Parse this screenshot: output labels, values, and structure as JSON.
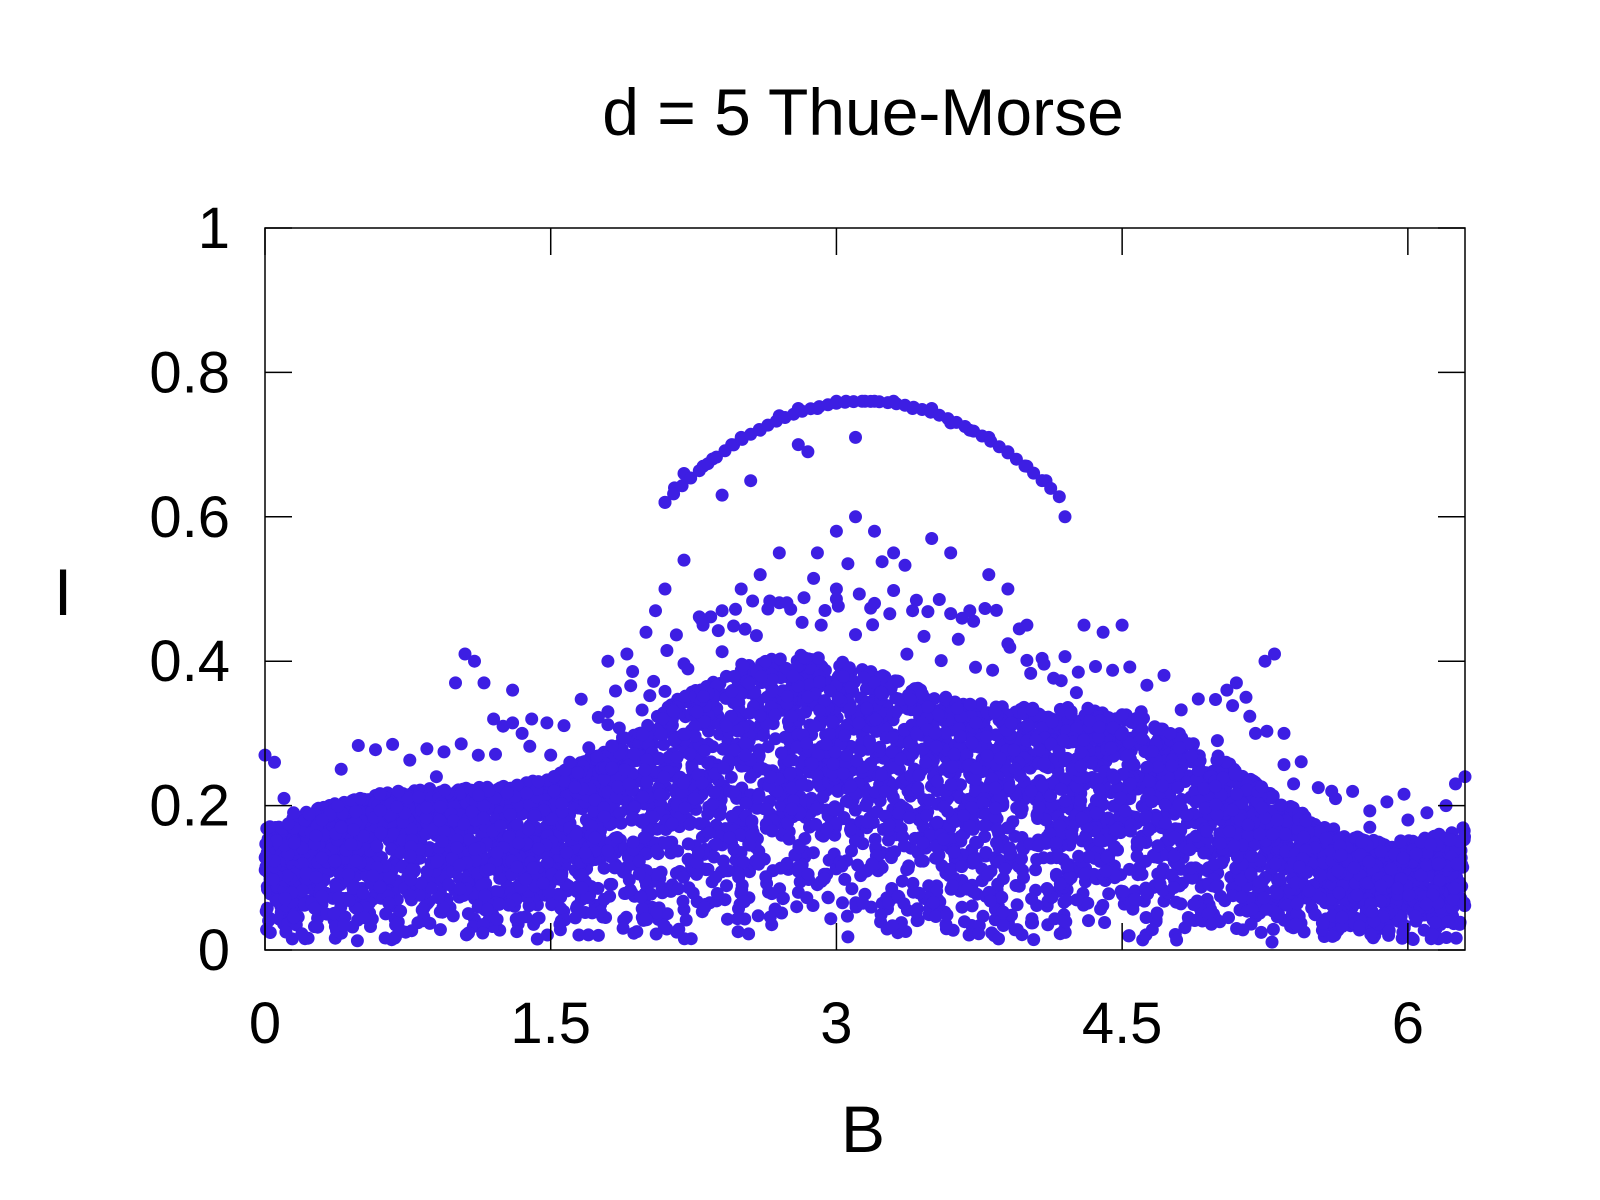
{
  "chart_data": {
    "type": "scatter",
    "title": "d = 5 Thue-Morse",
    "xlabel": "B",
    "ylabel": "I",
    "xlim": [
      0,
      6.3
    ],
    "ylim": [
      0,
      1
    ],
    "xticks": [
      0,
      1.5,
      3,
      4.5,
      6
    ],
    "xtick_labels": [
      "0",
      "1.5",
      "3",
      "4.5",
      "6"
    ],
    "yticks": [
      0,
      0.2,
      0.4,
      0.6,
      0.8,
      1
    ],
    "ytick_labels": [
      "0",
      "0.2",
      "0.4",
      "0.6",
      "0.8",
      "1"
    ],
    "grid": false,
    "legend": "none",
    "marker_color": "#3d1ee3",
    "series": [
      {
        "description_points_sampled": true,
        "points": [
          [
            0.0,
            0.27
          ],
          [
            0.05,
            0.26
          ],
          [
            0.1,
            0.21
          ],
          [
            0.15,
            0.19
          ],
          [
            0.3,
            0.18
          ],
          [
            0.4,
            0.17
          ],
          [
            0.5,
            0.21
          ],
          [
            0.7,
            0.22
          ],
          [
            0.9,
            0.24
          ],
          [
            1.0,
            0.37
          ],
          [
            1.05,
            0.41
          ],
          [
            1.1,
            0.4
          ],
          [
            1.15,
            0.37
          ],
          [
            1.2,
            0.32
          ],
          [
            1.25,
            0.31
          ],
          [
            1.3,
            0.36
          ],
          [
            1.35,
            0.3
          ],
          [
            1.4,
            0.32
          ],
          [
            1.5,
            0.27
          ],
          [
            1.6,
            0.26
          ],
          [
            1.7,
            0.28
          ],
          [
            1.8,
            0.33
          ],
          [
            1.8,
            0.4
          ],
          [
            1.9,
            0.41
          ],
          [
            2.0,
            0.44
          ],
          [
            2.05,
            0.47
          ],
          [
            2.1,
            0.5
          ],
          [
            2.1,
            0.62
          ],
          [
            2.15,
            0.64
          ],
          [
            2.2,
            0.54
          ],
          [
            2.2,
            0.66
          ],
          [
            2.3,
            0.67
          ],
          [
            2.35,
            0.68
          ],
          [
            2.4,
            0.63
          ],
          [
            2.45,
            0.7
          ],
          [
            2.5,
            0.71
          ],
          [
            2.55,
            0.65
          ],
          [
            2.6,
            0.72
          ],
          [
            2.7,
            0.74
          ],
          [
            2.8,
            0.75
          ],
          [
            2.8,
            0.7
          ],
          [
            2.85,
            0.69
          ],
          [
            2.9,
            0.75
          ],
          [
            3.0,
            0.76
          ],
          [
            3.05,
            0.76
          ],
          [
            3.1,
            0.71
          ],
          [
            3.15,
            0.76
          ],
          [
            3.2,
            0.76
          ],
          [
            3.3,
            0.76
          ],
          [
            3.4,
            0.75
          ],
          [
            3.5,
            0.75
          ],
          [
            3.6,
            0.73
          ],
          [
            3.7,
            0.72
          ],
          [
            3.8,
            0.71
          ],
          [
            3.9,
            0.69
          ],
          [
            4.0,
            0.67
          ],
          [
            4.1,
            0.65
          ],
          [
            4.2,
            0.6
          ],
          [
            4.3,
            0.45
          ],
          [
            4.4,
            0.44
          ],
          [
            4.5,
            0.45
          ],
          [
            4.6,
            0.33
          ],
          [
            4.8,
            0.28
          ],
          [
            5.0,
            0.29
          ],
          [
            5.05,
            0.36
          ],
          [
            5.1,
            0.37
          ],
          [
            5.15,
            0.35
          ],
          [
            5.2,
            0.3
          ],
          [
            5.25,
            0.4
          ],
          [
            5.3,
            0.41
          ],
          [
            5.35,
            0.3
          ],
          [
            5.4,
            0.23
          ],
          [
            5.6,
            0.22
          ],
          [
            5.8,
            0.17
          ],
          [
            6.0,
            0.18
          ],
          [
            6.1,
            0.19
          ],
          [
            6.2,
            0.2
          ],
          [
            6.25,
            0.23
          ],
          [
            6.3,
            0.24
          ],
          [
            3.0,
            0.58
          ],
          [
            3.1,
            0.6
          ],
          [
            3.2,
            0.58
          ],
          [
            3.3,
            0.55
          ],
          [
            2.9,
            0.55
          ],
          [
            3.5,
            0.57
          ],
          [
            3.6,
            0.55
          ],
          [
            3.8,
            0.52
          ],
          [
            3.9,
            0.5
          ],
          [
            2.5,
            0.5
          ],
          [
            2.6,
            0.52
          ],
          [
            2.7,
            0.55
          ],
          [
            3.0,
            0.5
          ],
          [
            3.2,
            0.48
          ],
          [
            3.4,
            0.47
          ],
          [
            3.7,
            0.47
          ],
          [
            4.0,
            0.45
          ],
          [
            2.3,
            0.45
          ],
          [
            2.4,
            0.47
          ]
        ]
      }
    ]
  }
}
